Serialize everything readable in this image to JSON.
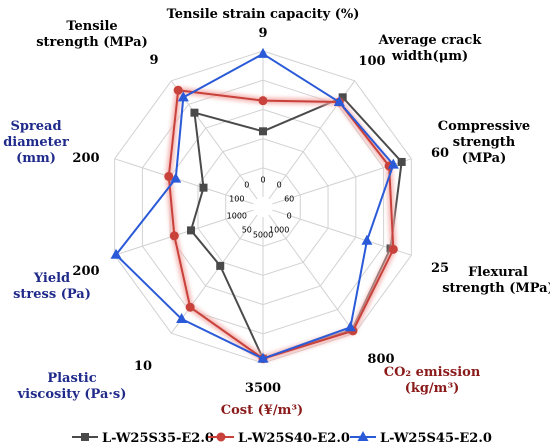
{
  "chart_data": {
    "type": "radar",
    "axes": [
      {
        "key": "tensile_strain",
        "title_lines": [
          "Tensile strain capacity (%)"
        ],
        "title_color": "#000000",
        "outer_tick": "9",
        "inner_tick": "0",
        "ticks_shown": true
      },
      {
        "key": "crack_width",
        "title_lines": [
          "Average crack",
          "width(μm)"
        ],
        "title_color": "#000000",
        "outer_tick": "100",
        "inner_tick": "0",
        "ticks_shown": true
      },
      {
        "key": "compressive",
        "title_lines": [
          "Compressive",
          "strength",
          "(MPa)"
        ],
        "title_color": "#000000",
        "outer_tick": "60",
        "inner_tick": "60",
        "ticks_shown": true
      },
      {
        "key": "flexural",
        "title_lines": [
          "Flexural",
          "strength (MPa)"
        ],
        "title_color": "#000000",
        "outer_tick": "25",
        "inner_tick": "0",
        "ticks_shown": true
      },
      {
        "key": "co2",
        "title_lines": [
          "CO₂ emission",
          "(kg/m³)"
        ],
        "title_color": "#8b1a1a",
        "outer_tick": "800",
        "inner_tick": "1000",
        "ticks_shown": true
      },
      {
        "key": "cost",
        "title_lines": [
          "Cost (¥/m³)"
        ],
        "title_color": "#8b1a1a",
        "outer_tick": "3500",
        "inner_tick": "5000",
        "ticks_shown": true
      },
      {
        "key": "plastic_viscosity",
        "title_lines": [
          "Plastic",
          "viscosity (Pa·s)"
        ],
        "title_color": "#1f2a8a",
        "outer_tick": "10",
        "inner_tick": "50",
        "ticks_shown": true
      },
      {
        "key": "yield_stress",
        "title_lines": [
          "Yield",
          "stress (Pa)"
        ],
        "title_color": "#1f2a8a",
        "outer_tick": "200",
        "inner_tick": "1000",
        "ticks_shown": true
      },
      {
        "key": "spread",
        "title_lines": [
          "Spread",
          "diameter",
          "(mm)"
        ],
        "title_color": "#1f2a8a",
        "outer_tick": "200",
        "inner_tick": "100",
        "ticks_shown": true
      },
      {
        "key": "tensile_strength",
        "title_lines": [
          "Tensile",
          "strength (MPa)"
        ],
        "title_color": "#000000",
        "outer_tick": "9",
        "inner_tick": "0",
        "ticks_shown": true
      }
    ],
    "rings": 5,
    "series": [
      {
        "name": "L-W25S35-E2.0",
        "color": "#4a4a4a",
        "marker": "square",
        "values": [
          0.45,
          0.86,
          0.93,
          0.85,
          0.97,
          0.97,
          0.43,
          0.45,
          0.36,
          0.73
        ]
      },
      {
        "name": "L-W25S40-E2.0",
        "color": "#c8413b",
        "marker": "circle",
        "values": [
          0.66,
          0.82,
          0.84,
          0.87,
          0.98,
          0.97,
          0.78,
          0.57,
          0.61,
          0.92
        ]
      },
      {
        "name": "L-W25S45-E2.0",
        "color": "#2a5ad8",
        "marker": "triangle",
        "values": [
          0.98,
          0.82,
          0.87,
          0.68,
          0.95,
          0.97,
          0.88,
          0.99,
          0.56,
          0.86
        ]
      }
    ],
    "legend_position": "bottom",
    "grid": true
  }
}
